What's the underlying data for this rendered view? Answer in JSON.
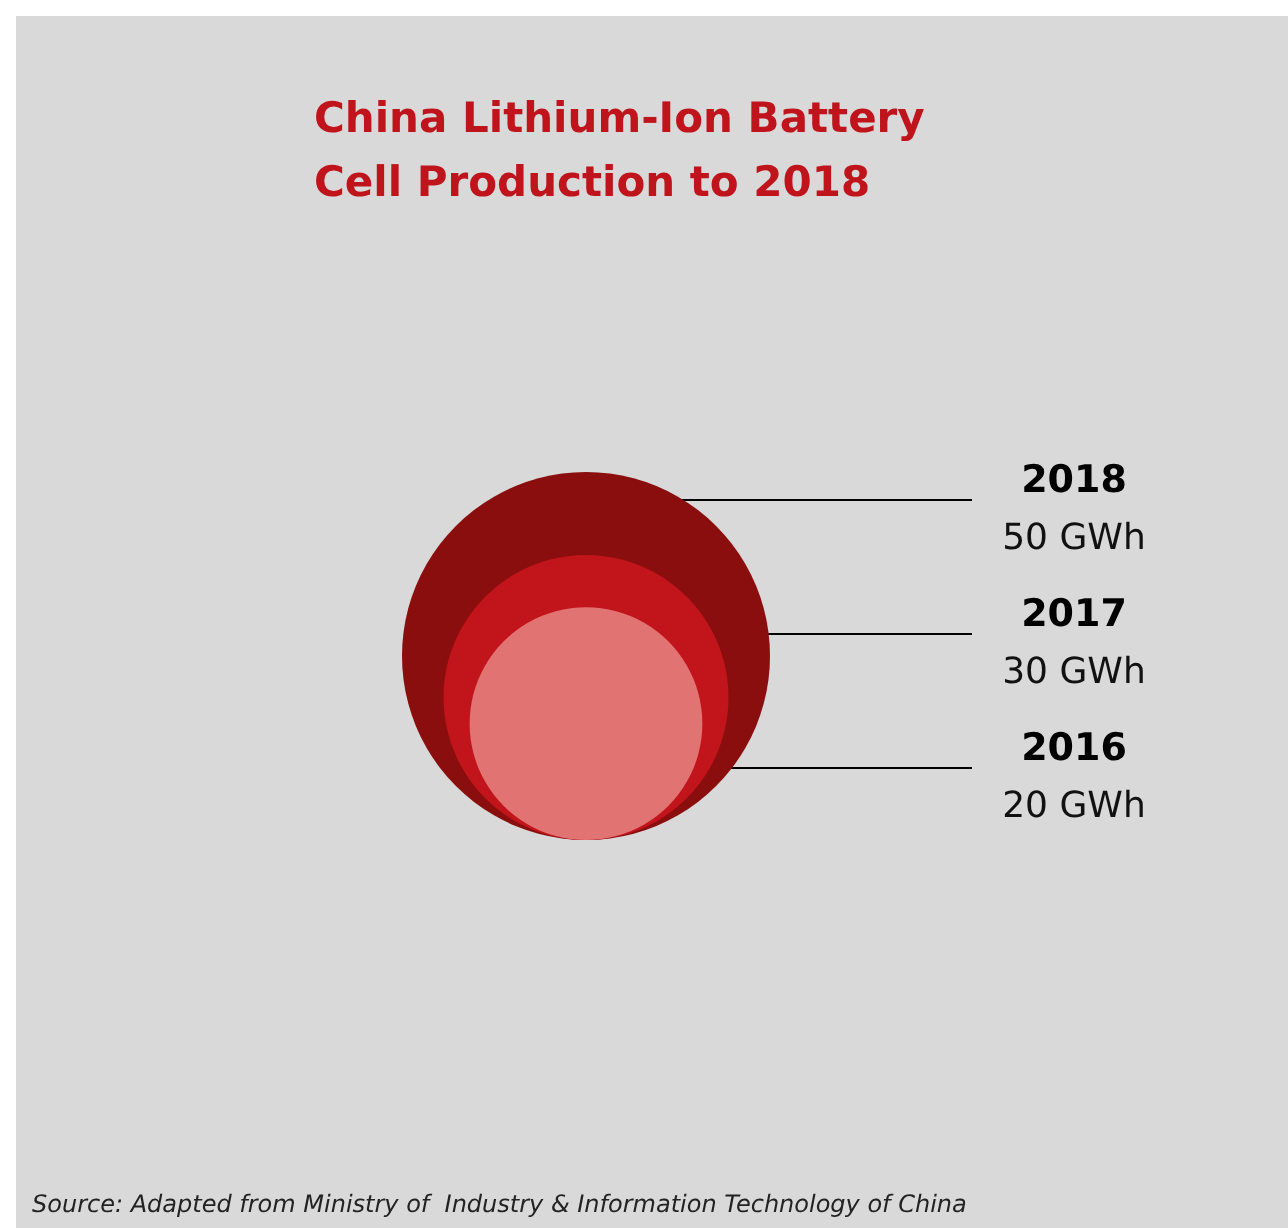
{
  "chart_data": {
    "type": "other",
    "title": "China Lithium-Ion Battery\nCell Production to 2018",
    "categories": [
      "2018",
      "2017",
      "2016"
    ],
    "values": [
      50,
      30,
      20
    ],
    "value_labels": [
      "50 GWh",
      "30 GWh",
      "20 GWh"
    ],
    "colors": [
      "#8a0e0e",
      "#c1141b",
      "#e27373"
    ],
    "annotations": [
      "Source: Adapted from Ministry of  Industry & Information Technology of China"
    ]
  }
}
